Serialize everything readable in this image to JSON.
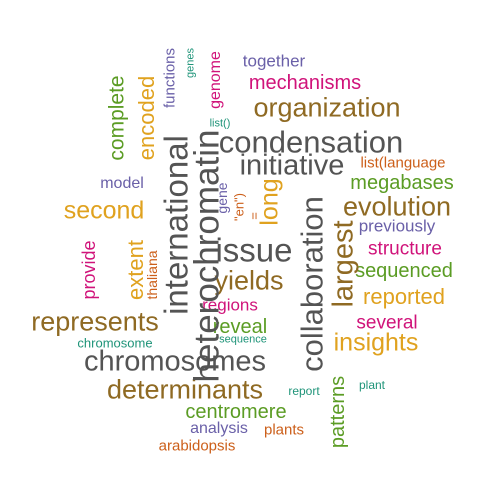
{
  "palette": {
    "gray": "#545454",
    "brown": "#8f6a23",
    "gold": "#e0a21f",
    "green": "#5b9c24",
    "magenta": "#d0137a",
    "purple": "#6a60a8",
    "teal": "#1f9479",
    "orange": "#cc5f1a"
  },
  "words": [
    {
      "text": "condensation",
      "color": "gray"
    },
    {
      "text": "initiative",
      "color": "gray"
    },
    {
      "text": "organization",
      "color": "brown"
    },
    {
      "text": "chromosomes",
      "color": "gray"
    },
    {
      "text": "determinants",
      "color": "brown"
    },
    {
      "text": "represents",
      "color": "brown"
    },
    {
      "text": "evolution",
      "color": "brown"
    },
    {
      "text": "issue",
      "color": "gray"
    },
    {
      "text": "yields",
      "color": "brown"
    },
    {
      "text": "second",
      "color": "gold"
    },
    {
      "text": "insights",
      "color": "gold"
    },
    {
      "text": "reported",
      "color": "gold"
    },
    {
      "text": "megabases",
      "color": "green"
    },
    {
      "text": "sequenced",
      "color": "green"
    },
    {
      "text": "centromere",
      "color": "green"
    },
    {
      "text": "reveal",
      "color": "green"
    },
    {
      "text": "mechanisms",
      "color": "magenta"
    },
    {
      "text": "structure",
      "color": "magenta"
    },
    {
      "text": "several",
      "color": "magenta"
    },
    {
      "text": "regions",
      "color": "magenta"
    },
    {
      "text": "previously",
      "color": "purple"
    },
    {
      "text": "together",
      "color": "purple"
    },
    {
      "text": "model",
      "color": "purple"
    },
    {
      "text": "analysis",
      "color": "purple"
    },
    {
      "text": "list(language",
      "color": "orange"
    },
    {
      "text": "plants",
      "color": "orange"
    },
    {
      "text": "arabidopsis",
      "color": "orange"
    },
    {
      "text": "chromosome",
      "color": "teal"
    },
    {
      "text": "sequence",
      "color": "teal"
    },
    {
      "text": "report",
      "color": "teal"
    },
    {
      "text": "plant",
      "color": "teal"
    },
    {
      "text": "list()",
      "color": "teal"
    },
    {
      "text": "heterochromatin",
      "color": "gray"
    },
    {
      "text": "international",
      "color": "gray"
    },
    {
      "text": "collaboration",
      "color": "gray"
    },
    {
      "text": "largest",
      "color": "brown"
    },
    {
      "text": "long",
      "color": "gold"
    },
    {
      "text": "extent",
      "color": "gold"
    },
    {
      "text": "encoded",
      "color": "gold"
    },
    {
      "text": "complete",
      "color": "green"
    },
    {
      "text": "patterns",
      "color": "green"
    },
    {
      "text": "provide",
      "color": "magenta"
    },
    {
      "text": "genome",
      "color": "magenta"
    },
    {
      "text": "functions",
      "color": "purple"
    },
    {
      "text": "gene",
      "color": "purple"
    },
    {
      "text": "thaliana",
      "color": "orange"
    },
    {
      "text": "\"en\")",
      "color": "orange"
    },
    {
      "text": "=",
      "color": "orange"
    },
    {
      "text": "genes",
      "color": "teal"
    }
  ]
}
